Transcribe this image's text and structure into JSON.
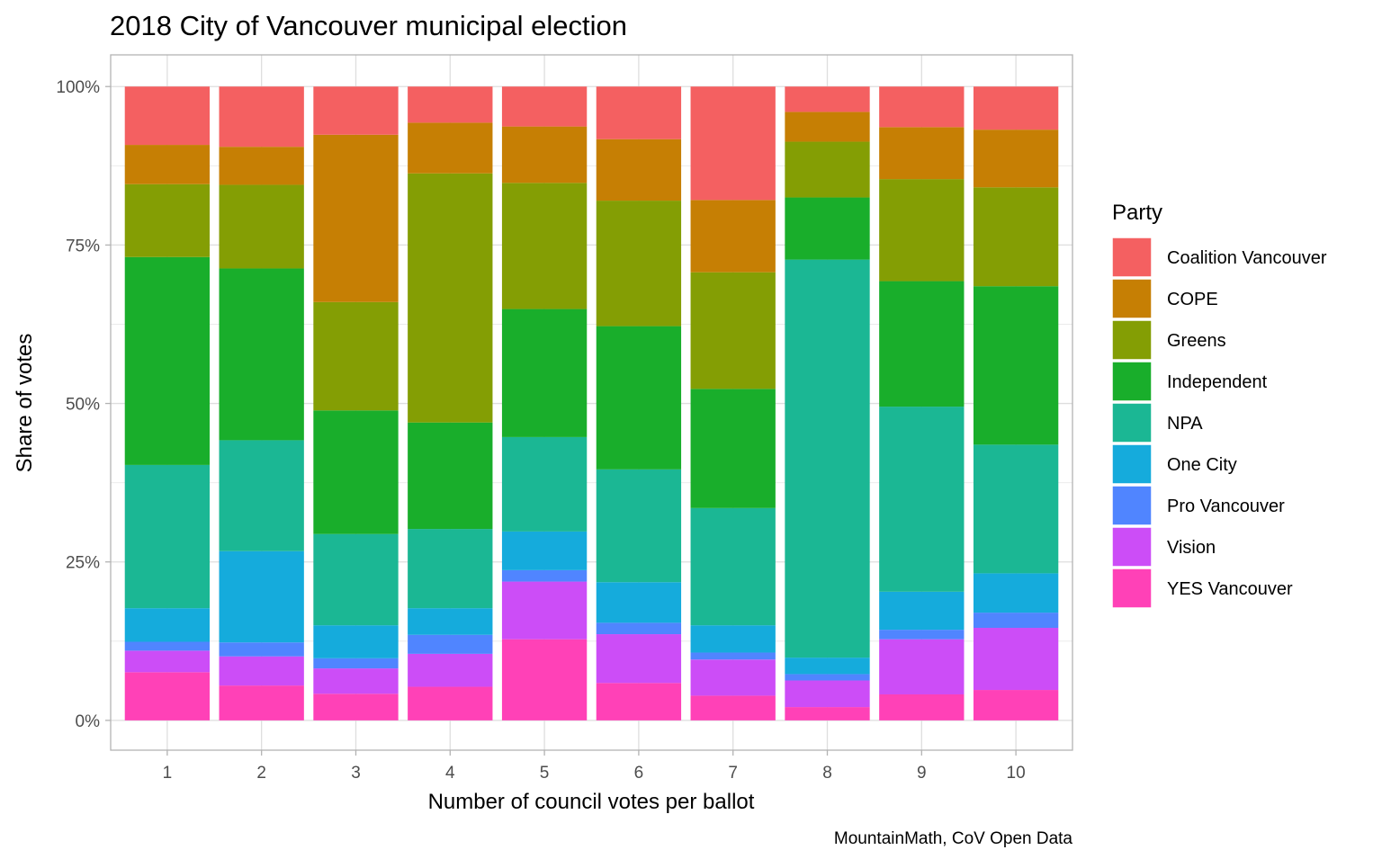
{
  "chart_data": {
    "type": "bar",
    "stacked": true,
    "title": "2018 City of Vancouver municipal election",
    "xlabel": "Number of council votes per ballot",
    "ylabel": "Share of votes",
    "caption": "MountainMath, CoV Open Data",
    "categories": [
      "1",
      "2",
      "3",
      "4",
      "5",
      "6",
      "7",
      "8",
      "9",
      "10"
    ],
    "y_ticks": [
      0,
      25,
      50,
      75,
      100
    ],
    "y_tick_labels": [
      "0%",
      "25%",
      "50%",
      "75%",
      "100%"
    ],
    "ylim": [
      -4.7,
      105
    ],
    "grid": true,
    "legend": {
      "title": "Party",
      "position": "right"
    },
    "series": [
      {
        "name": "YES Vancouver",
        "color": "#FF41B7",
        "values": [
          7.6,
          5.5,
          4.2,
          5.3,
          12.8,
          5.9,
          3.9,
          2.1,
          4.1,
          4.8
        ]
      },
      {
        "name": "Vision",
        "color": "#CC4DF7",
        "values": [
          3.4,
          4.6,
          4.0,
          5.2,
          9.1,
          7.7,
          5.7,
          4.2,
          8.7,
          9.8
        ]
      },
      {
        "name": "Pro Vancouver",
        "color": "#5085FF",
        "values": [
          1.4,
          2.2,
          1.6,
          3.0,
          1.8,
          1.8,
          1.1,
          1.0,
          1.5,
          2.4
        ]
      },
      {
        "name": "One City",
        "color": "#15ABDC",
        "values": [
          5.3,
          14.4,
          5.2,
          4.2,
          6.1,
          6.4,
          4.3,
          2.6,
          6.0,
          6.2
        ]
      },
      {
        "name": "NPA",
        "color": "#1BB794",
        "values": [
          22.6,
          17.5,
          14.4,
          12.5,
          14.9,
          17.8,
          18.5,
          62.8,
          29.2,
          20.3
        ]
      },
      {
        "name": "Independent",
        "color": "#19AE2B",
        "values": [
          32.8,
          27.1,
          19.5,
          16.8,
          20.2,
          22.6,
          18.8,
          9.8,
          19.8,
          25.0
        ]
      },
      {
        "name": "Greens",
        "color": "#849E04",
        "values": [
          11.5,
          13.2,
          17.1,
          39.3,
          19.9,
          19.8,
          18.4,
          8.8,
          16.1,
          15.6
        ]
      },
      {
        "name": "COPE",
        "color": "#C67F04",
        "values": [
          6.2,
          6.0,
          26.4,
          8.0,
          8.9,
          9.7,
          11.4,
          4.7,
          8.2,
          9.1
        ]
      },
      {
        "name": "Coalition Vancouver",
        "color": "#F46061",
        "values": [
          9.2,
          9.5,
          7.6,
          5.7,
          6.3,
          8.3,
          17.9,
          4.0,
          6.4,
          6.8
        ]
      }
    ]
  }
}
